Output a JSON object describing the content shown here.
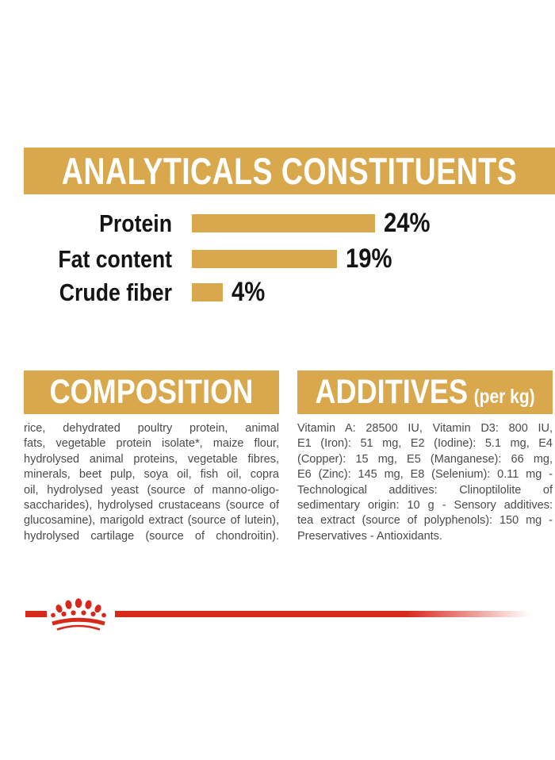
{
  "colors": {
    "gold": "#D9A74C",
    "brand_red": "#D7281C",
    "chart_text": "#141414",
    "body_text": "#4A4A48",
    "header_text": "#FFFFFF",
    "background": "#FFFFFF"
  },
  "analyticals": {
    "title": "ANALYTICALS CONSTITUENTS"
  },
  "chart_data": {
    "type": "bar",
    "orientation": "horizontal",
    "title": "ANALYTICALS CONSTITUENTS",
    "categories": [
      "Protein",
      "Fat content",
      "Crude fiber"
    ],
    "values": [
      24,
      19,
      4
    ],
    "labels": [
      "24%",
      "19%",
      "4%"
    ],
    "unit": "%",
    "xlim": [
      0,
      24
    ],
    "bar_color": "#D9A74C",
    "grid": false,
    "value_label_position": "right-of-bar"
  },
  "composition": {
    "title": "COMPOSITION",
    "lines": [
      "rice, dehydrated poultry protein, animal",
      "fats, vegetable protein isolate*, maize flour,",
      "hydrolysed animal proteins, vegetable fibres,",
      "minerals, beet pulp, soya oil, fish oil, copra",
      "oil, hydrolysed yeast (source of manno-oligo-",
      "saccharides), hydrolysed crustaceans (source of",
      "glucosamine), marigold extract (source of lutein),",
      "hydrolysed cartilage (source of chondroitin)."
    ]
  },
  "additives": {
    "title": "ADDITIVES",
    "title_suffix": "(per kg)",
    "lines": [
      "Vitamin A: 28500 IU, Vitamin D3: 800 IU,",
      "E1 (Iron): 51 mg, E2 (Iodine): 5.1 mg, E4",
      "(Copper): 15 mg, E5 (Manganese): 66 mg,",
      "E6 (Zinc): 145 mg, E8 (Selenium): 0.11 mg -",
      "Technological additives: Clinoptilolite of",
      "sedimentary origin: 10 g - Sensory additives:",
      "tea extract (source of polyphenols): 150 mg -",
      "Preservatives - Antioxidants."
    ]
  },
  "footer": {
    "crown_icon": "royal-canin-crown"
  }
}
